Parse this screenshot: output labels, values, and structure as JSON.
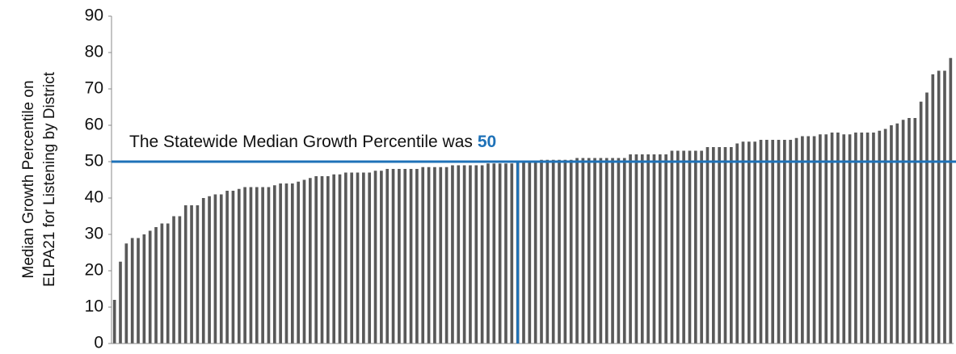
{
  "chart_data": {
    "type": "bar",
    "ylabel": [
      "Median Growth Percentile on",
      "ELPA21 for Listening by District"
    ],
    "annotation": "The Statewide Median Growth Percentile was",
    "median": 50,
    "color": "#595959",
    "annotation_color": "#1f72b8",
    "ylim": [
      0,
      90
    ],
    "yticks": [
      0,
      10,
      20,
      30,
      40,
      50,
      60,
      70,
      80,
      90
    ],
    "values": [
      12,
      22.5,
      27.5,
      29,
      29,
      30,
      31,
      32,
      33,
      33,
      35,
      35,
      38,
      38,
      38,
      40,
      40.5,
      41,
      41,
      42,
      42,
      42.5,
      43,
      43,
      43,
      43,
      43,
      43.5,
      44,
      44,
      44,
      44.5,
      45,
      45.5,
      46,
      46,
      46,
      46.5,
      46.5,
      47,
      47,
      47,
      47,
      47,
      47.5,
      47.5,
      48,
      48,
      48,
      48,
      48,
      48,
      48.5,
      48.5,
      48.5,
      48.5,
      48.5,
      49,
      49,
      49,
      49,
      49,
      49,
      49.5,
      49.5,
      49.5,
      49.5,
      49.5,
      50,
      50,
      50,
      50,
      50.5,
      50.5,
      50.5,
      50.5,
      50.5,
      50.5,
      51,
      51,
      51,
      51,
      51,
      51,
      51,
      51,
      51,
      52,
      52,
      52,
      52,
      52,
      52,
      52,
      53,
      53,
      53,
      53,
      53,
      53,
      54,
      54,
      54,
      54,
      54,
      55,
      55.5,
      55.5,
      55.5,
      56,
      56,
      56,
      56,
      56,
      56,
      56.5,
      57,
      57,
      57,
      57.5,
      57.5,
      58,
      58,
      57.5,
      57.5,
      58,
      58,
      58,
      58,
      58.5,
      59,
      60,
      60.5,
      61.5,
      62,
      62,
      66.5,
      69,
      74,
      75,
      75,
      78.5
    ]
  }
}
